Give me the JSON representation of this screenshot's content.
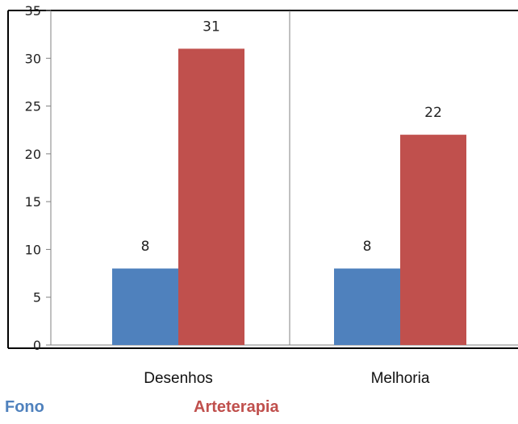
{
  "chart_data": {
    "type": "bar",
    "categories": [
      "Desenhos",
      "Melhoria"
    ],
    "series": [
      {
        "name": "Fono",
        "values": [
          8,
          8
        ],
        "color": "#4F81BD"
      },
      {
        "name": "Arteterapia",
        "values": [
          31,
          22
        ],
        "color": "#C0504D"
      }
    ],
    "ylim": [
      0,
      35
    ],
    "yticks": [
      0,
      5,
      10,
      15,
      20,
      25,
      30,
      35
    ],
    "grid": "vertical separators between categories",
    "legend_position": "bottom"
  },
  "legend": {
    "fono_label": "Fono",
    "fono_color": "#4F81BD",
    "arteterapia_label": "Arteterapia",
    "arteterapia_color": "#C0504D"
  }
}
